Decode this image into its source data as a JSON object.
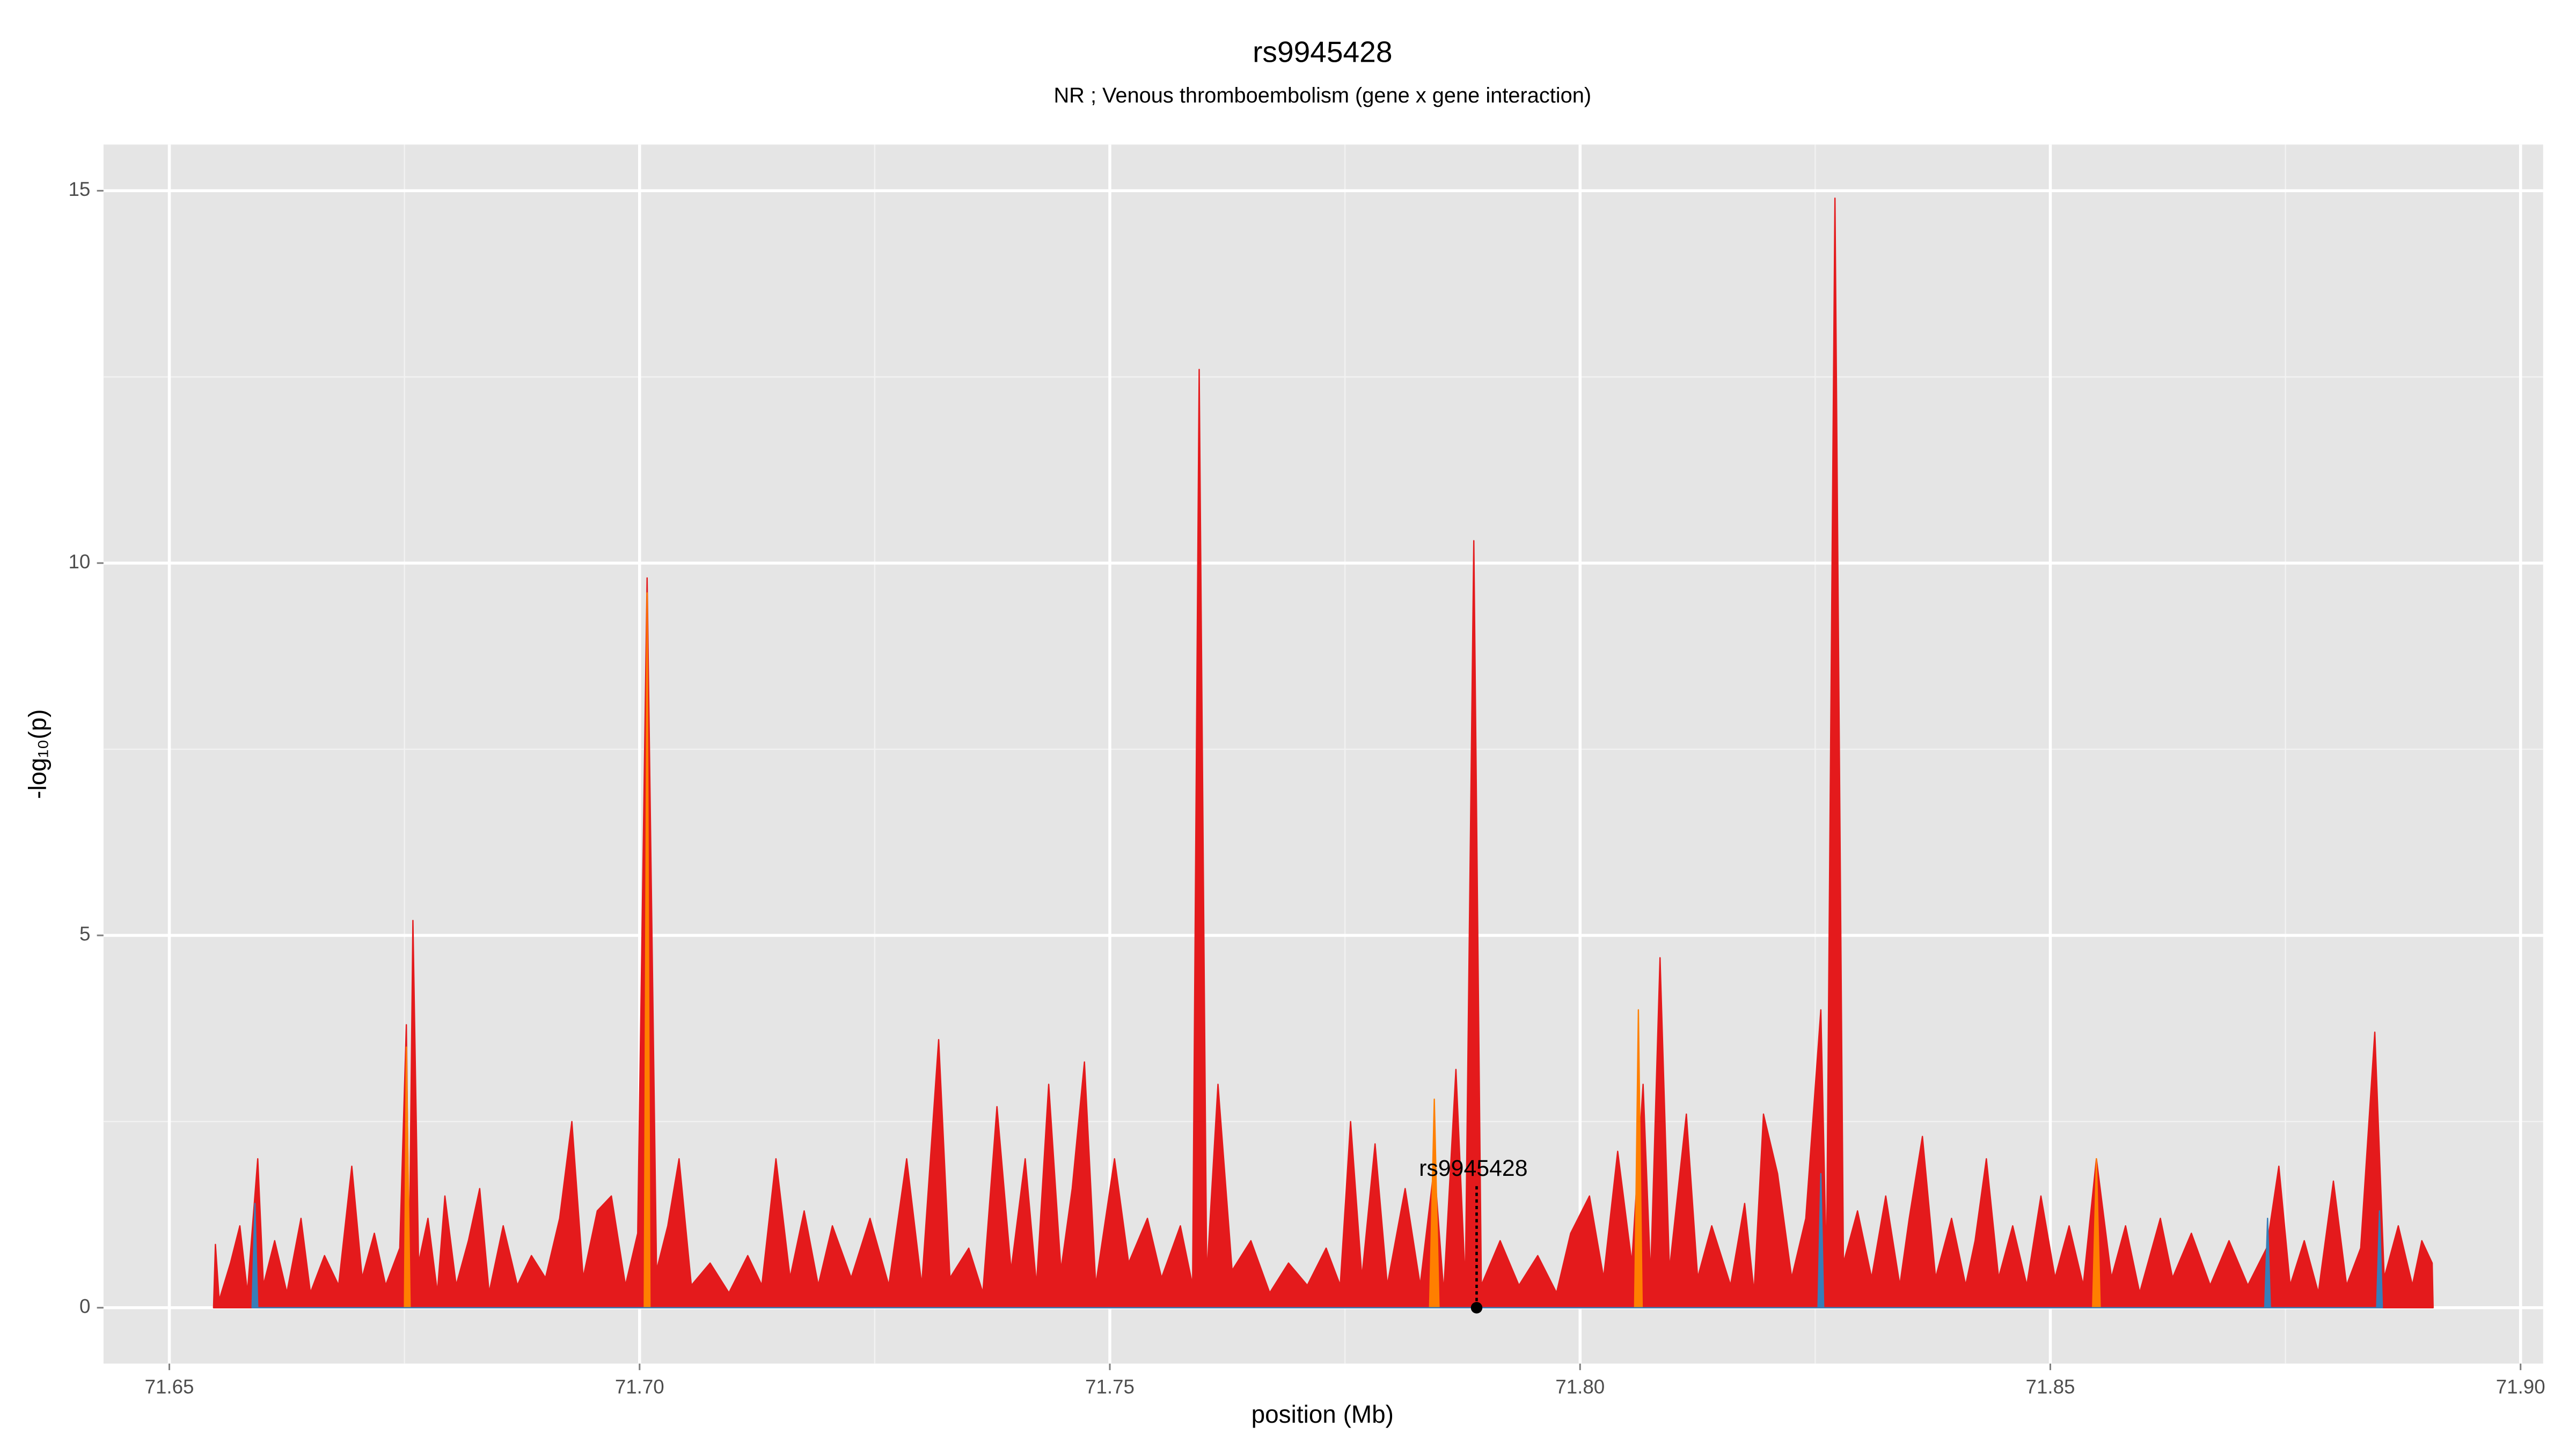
{
  "chart_data": {
    "type": "area",
    "title": "rs9945428",
    "subtitle": "NR ; Venous thromboembolism (gene x gene interaction)",
    "x_label": "position (Mb)",
    "y_label": "-log₁₀(p)",
    "xlim": [
      71.643,
      71.9024
    ],
    "ylim": [
      -0.75,
      15.62
    ],
    "xticks": [
      {
        "value": 71.65,
        "label": "71.65"
      },
      {
        "value": 71.7,
        "label": "71.70"
      },
      71.75,
      {
        "value": 71.8,
        "label": "71.80"
      },
      71.85,
      {
        "value": 71.9,
        "label": "71.90"
      }
    ],
    "yticks": [
      0,
      5,
      10,
      15
    ],
    "grid": true,
    "series": [
      {
        "color": "#e41a1c",
        "x": [
          71.6547,
          71.6549,
          71.6553,
          71.6565,
          71.6575,
          71.6583,
          71.6594,
          71.66,
          71.6612,
          71.6625,
          71.664,
          71.665,
          71.6665,
          71.668,
          71.6694,
          71.6705,
          71.6718,
          71.673,
          71.6745,
          71.6752,
          71.6755,
          71.6759,
          71.6765,
          71.6775,
          71.6785,
          71.6793,
          71.6805,
          71.6818,
          71.683,
          71.684,
          71.6855,
          71.687,
          71.6885,
          71.69,
          71.6915,
          71.6928,
          71.694,
          71.6955,
          71.697,
          71.6985,
          71.6998,
          71.7008,
          71.7018,
          71.703,
          71.7042,
          71.7055,
          71.7075,
          71.7095,
          71.7115,
          71.713,
          71.7145,
          71.716,
          71.7175,
          71.719,
          71.7205,
          71.7225,
          71.7245,
          71.7265,
          71.7284,
          71.73,
          71.7318,
          71.733,
          71.735,
          71.7365,
          71.738,
          71.7395,
          71.741,
          71.7422,
          71.7435,
          71.7448,
          71.746,
          71.7473,
          71.7485,
          71.7505,
          71.752,
          71.754,
          71.7555,
          71.7575,
          71.7588,
          71.7595,
          71.7603,
          71.7615,
          71.763,
          71.765,
          71.767,
          71.769,
          71.771,
          71.773,
          71.7745,
          71.7756,
          71.7768,
          71.7782,
          71.7795,
          71.7814,
          71.783,
          71.7845,
          71.7855,
          71.7868,
          71.7878,
          71.7887,
          71.7895,
          71.7915,
          71.7935,
          71.7955,
          71.7975,
          71.799,
          71.801,
          71.8025,
          71.804,
          71.8055,
          71.8067,
          71.8075,
          71.8085,
          71.8095,
          71.8113,
          71.8125,
          71.814,
          71.816,
          71.8175,
          71.8185,
          71.8195,
          71.821,
          71.8225,
          71.824,
          71.8256,
          71.8262,
          71.8271,
          71.828,
          71.8295,
          71.831,
          71.8325,
          71.834,
          71.835,
          71.8364,
          71.8378,
          71.8395,
          71.841,
          71.842,
          71.8432,
          71.8445,
          71.846,
          71.8475,
          71.849,
          71.8505,
          71.852,
          71.8535,
          71.8549,
          71.8565,
          71.858,
          71.8595,
          71.8617,
          71.863,
          71.865,
          71.867,
          71.869,
          71.871,
          71.873,
          71.8743,
          71.8755,
          71.877,
          71.8785,
          71.8801,
          71.8815,
          71.883,
          71.8845,
          71.8855,
          71.887,
          71.8885,
          71.8895,
          71.8906,
          71.8907
        ],
        "values": [
          0,
          0.85,
          0.1,
          0.6,
          1.1,
          0.2,
          2.0,
          0.3,
          0.9,
          0.2,
          1.2,
          0.2,
          0.7,
          0.3,
          1.9,
          0.4,
          1.0,
          0.3,
          0.8,
          3.8,
          0.5,
          5.2,
          0.6,
          1.2,
          0.2,
          1.5,
          0.3,
          0.9,
          1.6,
          0.2,
          1.1,
          0.3,
          0.7,
          0.4,
          1.2,
          2.5,
          0.4,
          1.3,
          1.5,
          0.3,
          1.0,
          9.8,
          0.5,
          1.1,
          2.0,
          0.3,
          0.6,
          0.2,
          0.7,
          0.3,
          2.0,
          0.4,
          1.3,
          0.3,
          1.1,
          0.4,
          1.2,
          0.3,
          2.0,
          0.3,
          3.6,
          0.4,
          0.8,
          0.2,
          2.7,
          0.5,
          2.0,
          0.3,
          3.0,
          0.5,
          1.6,
          3.3,
          0.3,
          2.0,
          0.6,
          1.2,
          0.4,
          1.1,
          0.3,
          12.6,
          0.4,
          3.0,
          0.5,
          0.9,
          0.2,
          0.6,
          0.3,
          0.8,
          0.3,
          2.5,
          0.4,
          2.2,
          0.3,
          1.6,
          0.3,
          1.9,
          0.2,
          3.2,
          0.3,
          10.3,
          0.3,
          0.9,
          0.3,
          0.7,
          0.2,
          1.0,
          1.5,
          0.4,
          2.1,
          0.6,
          3.0,
          0.4,
          4.7,
          0.5,
          2.6,
          0.4,
          1.1,
          0.3,
          1.4,
          0.2,
          2.6,
          1.8,
          0.4,
          1.2,
          4.0,
          0.5,
          14.9,
          0.6,
          1.3,
          0.4,
          1.5,
          0.3,
          1.2,
          2.3,
          0.4,
          1.2,
          0.3,
          0.9,
          2.0,
          0.4,
          1.1,
          0.3,
          1.5,
          0.4,
          1.1,
          0.3,
          2.0,
          0.4,
          1.1,
          0.2,
          1.2,
          0.4,
          1.0,
          0.3,
          0.9,
          0.3,
          0.8,
          1.9,
          0.3,
          0.9,
          0.2,
          1.7,
          0.3,
          0.8,
          3.7,
          0.4,
          1.1,
          0.3,
          0.9,
          0.6,
          0
        ]
      },
      {
        "color": "#ff7f00",
        "x": [
          71.675,
          71.6752,
          71.6756,
          71.7005,
          71.7008,
          71.7011,
          71.784,
          71.7845,
          71.785,
          71.8058,
          71.8062,
          71.8066,
          71.8545,
          71.8549,
          71.8553
        ],
        "values": [
          0,
          3.5,
          0,
          0,
          9.6,
          0,
          0,
          2.8,
          0,
          0,
          4.0,
          0,
          0,
          2.0,
          0
        ]
      },
      {
        "color": "#377eb8",
        "x": [
          71.6588,
          71.6591,
          71.6594,
          71.8253,
          71.8256,
          71.8259,
          71.8728,
          71.8731,
          71.8734,
          71.8847,
          71.885,
          71.8853
        ],
        "values": [
          0,
          1.4,
          0,
          0,
          1.8,
          0,
          0,
          1.2,
          0,
          0,
          1.3,
          0
        ]
      }
    ],
    "highlight": {
      "label": "rs9945428",
      "x": 71.789,
      "y": 0
    }
  }
}
